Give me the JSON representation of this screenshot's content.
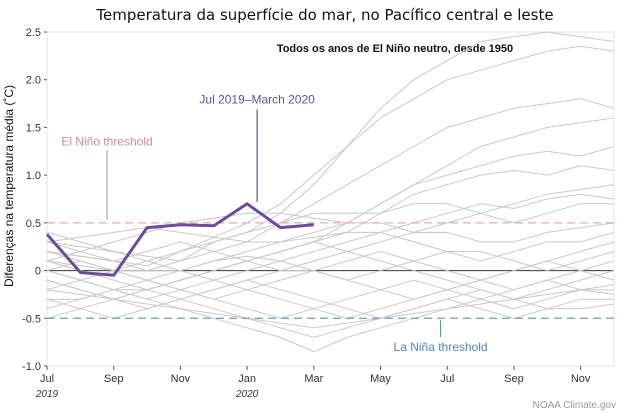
{
  "chart_data": {
    "type": "line",
    "title": "Temperatura da superfície do mar, no Pacífico central e leste",
    "subtitle": "Todos os anos de El Niño neutro, desde 1950",
    "ylabel": "Diferenças na temperatura média (˚C)",
    "ylim": [
      -1.0,
      2.5
    ],
    "yticks": [
      "2.5",
      "2.0",
      "1.5",
      "1.0",
      "0.5",
      "0",
      "-0.5",
      "-1.0"
    ],
    "ytick_values": [
      2.5,
      2.0,
      1.5,
      1.0,
      0.5,
      0,
      -0.5,
      -1.0
    ],
    "xticks": [
      "Jul",
      "Sep",
      "Nov",
      "Jan",
      "Mar",
      "May",
      "Jul",
      "Sep",
      "Nov"
    ],
    "xtick_positions": [
      0,
      2,
      4,
      6,
      8,
      10,
      12,
      14,
      16
    ],
    "year_labels": [
      {
        "label": "2019",
        "x": 0
      },
      {
        "label": "2020",
        "x": 6
      }
    ],
    "xlim": [
      0,
      17
    ],
    "zero_line": 0,
    "thresholds": [
      {
        "name": "El Niño threshold",
        "value": 0.5,
        "color": "#e8a8ad",
        "label_color": "#c98e92",
        "label_x": 1.8,
        "label_y": 1.35
      },
      {
        "name": "La Niña threshold",
        "value": -0.5,
        "color": "#6a9fd0",
        "label_color": "#4f86c4",
        "label_x": 11.8,
        "label_y": -0.8
      }
    ],
    "highlight": {
      "name": "Jul 2019–March 2020",
      "color": "#6a4c9c",
      "label_x": 6.3,
      "label_y": 1.75,
      "x": [
        0,
        1,
        2,
        3,
        4,
        5,
        6,
        7,
        8
      ],
      "y": [
        0.38,
        -0.02,
        -0.05,
        0.45,
        0.48,
        0.47,
        0.7,
        0.45,
        0.48
      ]
    },
    "background_color": "#c8c8c8",
    "background_series": [
      {
        "y": [
          0.3,
          0.25,
          0.2,
          0.15,
          0.1,
          0.3,
          0.4,
          0.6,
          0.9,
          1.3,
          1.7,
          2.0,
          2.2,
          2.4,
          2.45,
          2.5,
          2.45,
          2.4
        ]
      },
      {
        "y": [
          0.2,
          0.15,
          0.1,
          0.05,
          0.2,
          0.35,
          0.5,
          0.7,
          1.0,
          1.3,
          1.6,
          1.8,
          2.0,
          2.1,
          2.2,
          2.3,
          2.35,
          2.3
        ]
      },
      {
        "y": [
          0.1,
          0.05,
          0.0,
          0.0,
          0.1,
          0.2,
          0.3,
          0.5,
          0.7,
          0.9,
          1.1,
          1.3,
          1.5,
          1.6,
          1.7,
          1.75,
          1.8,
          1.7
        ]
      },
      {
        "y": [
          -0.1,
          -0.2,
          -0.3,
          -0.2,
          -0.1,
          0.0,
          0.1,
          0.2,
          0.3,
          0.5,
          0.7,
          0.9,
          1.1,
          1.3,
          1.4,
          1.5,
          1.55,
          1.6
        ]
      },
      {
        "y": [
          0.3,
          0.2,
          0.1,
          0.0,
          0.0,
          0.1,
          0.2,
          0.3,
          0.4,
          0.5,
          0.7,
          0.9,
          1.0,
          1.1,
          1.2,
          1.25,
          1.2,
          1.3
        ]
      },
      {
        "y": [
          -0.3,
          -0.3,
          -0.2,
          -0.2,
          -0.1,
          0.0,
          0.1,
          0.2,
          0.3,
          0.4,
          0.6,
          0.8,
          0.9,
          1.0,
          1.05,
          1.0,
          1.1,
          1.05
        ]
      },
      {
        "y": [
          0.2,
          0.15,
          0.1,
          0.2,
          0.3,
          0.2,
          0.1,
          0.0,
          0.1,
          0.2,
          0.3,
          0.4,
          0.5,
          0.6,
          0.7,
          0.8,
          0.85,
          0.9
        ]
      },
      {
        "y": [
          0.0,
          -0.1,
          -0.2,
          -0.3,
          -0.2,
          -0.1,
          0.0,
          0.1,
          0.2,
          0.3,
          0.4,
          0.5,
          0.6,
          0.7,
          0.65,
          0.75,
          0.8,
          0.75
        ]
      },
      {
        "y": [
          -0.2,
          -0.1,
          0.0,
          0.1,
          0.2,
          0.3,
          0.4,
          0.5,
          0.6,
          0.6,
          0.6,
          0.7,
          0.7,
          0.6,
          0.5,
          0.6,
          0.7,
          0.7
        ]
      },
      {
        "y": [
          0.1,
          0.2,
          0.3,
          0.4,
          0.5,
          0.55,
          0.6,
          0.6,
          0.55,
          0.5,
          0.5,
          0.4,
          0.4,
          0.3,
          0.3,
          0.4,
          0.45,
          0.5
        ]
      },
      {
        "y": [
          0.3,
          0.35,
          0.4,
          0.45,
          0.4,
          0.35,
          0.3,
          0.3,
          0.35,
          0.4,
          0.4,
          0.3,
          0.2,
          0.1,
          0.2,
          0.3,
          0.3,
          0.4
        ]
      },
      {
        "y": [
          -0.4,
          -0.3,
          -0.2,
          -0.1,
          0.0,
          0.1,
          0.15,
          0.1,
          0.0,
          -0.1,
          0.0,
          0.1,
          0.2,
          0.2,
          0.1,
          0.0,
          0.1,
          0.2
        ]
      },
      {
        "y": [
          0.0,
          0.1,
          0.0,
          -0.1,
          -0.2,
          -0.3,
          -0.2,
          -0.1,
          0.0,
          0.1,
          0.2,
          0.1,
          0.0,
          -0.1,
          -0.2,
          -0.1,
          0.0,
          0.1
        ]
      },
      {
        "y": [
          -0.1,
          -0.2,
          -0.3,
          -0.4,
          -0.3,
          -0.2,
          -0.1,
          0.0,
          0.0,
          -0.1,
          -0.2,
          -0.3,
          -0.2,
          -0.1,
          0.0,
          0.1,
          0.0,
          -0.1
        ]
      },
      {
        "y": [
          0.2,
          0.1,
          0.0,
          -0.1,
          -0.2,
          -0.3,
          -0.4,
          -0.5,
          -0.4,
          -0.3,
          -0.2,
          -0.1,
          -0.2,
          -0.3,
          -0.4,
          -0.3,
          -0.2,
          -0.2
        ]
      },
      {
        "y": [
          -0.3,
          -0.4,
          -0.5,
          -0.4,
          -0.3,
          -0.2,
          -0.1,
          -0.2,
          -0.3,
          -0.4,
          -0.5,
          -0.4,
          -0.3,
          -0.2,
          -0.3,
          -0.4,
          -0.3,
          -0.3
        ]
      },
      {
        "y": [
          -0.5,
          -0.4,
          -0.3,
          -0.2,
          -0.3,
          -0.4,
          -0.5,
          -0.6,
          -0.7,
          -0.6,
          -0.5,
          -0.4,
          -0.3,
          -0.4,
          -0.5,
          -0.4,
          -0.4,
          -0.35
        ]
      },
      {
        "y": [
          0.0,
          -0.1,
          -0.2,
          -0.3,
          -0.4,
          -0.5,
          -0.6,
          -0.7,
          -0.85,
          -0.7,
          -0.6,
          -0.5,
          -0.4,
          -0.3,
          -0.2,
          -0.1,
          -0.2,
          -0.25
        ]
      },
      {
        "y": [
          -0.2,
          -0.25,
          -0.3,
          -0.35,
          -0.4,
          -0.45,
          -0.5,
          -0.55,
          -0.6,
          -0.55,
          -0.5,
          -0.45,
          -0.4,
          -0.35,
          -0.3,
          -0.25,
          -0.2,
          -0.15
        ]
      },
      {
        "y": [
          0.4,
          0.3,
          0.2,
          0.1,
          0.0,
          -0.1,
          -0.2,
          -0.3,
          -0.4,
          -0.5,
          -0.4,
          -0.3,
          -0.2,
          -0.1,
          0.0,
          0.1,
          0.2,
          0.3
        ]
      },
      {
        "y": [
          0.1,
          0.0,
          -0.1,
          -0.2,
          -0.1,
          0.0,
          0.1,
          0.2,
          0.3,
          0.2,
          0.1,
          0.0,
          -0.1,
          -0.2,
          -0.3,
          -0.2,
          -0.1,
          0.0
        ]
      }
    ]
  },
  "credit": "NOAA Climate.gov"
}
